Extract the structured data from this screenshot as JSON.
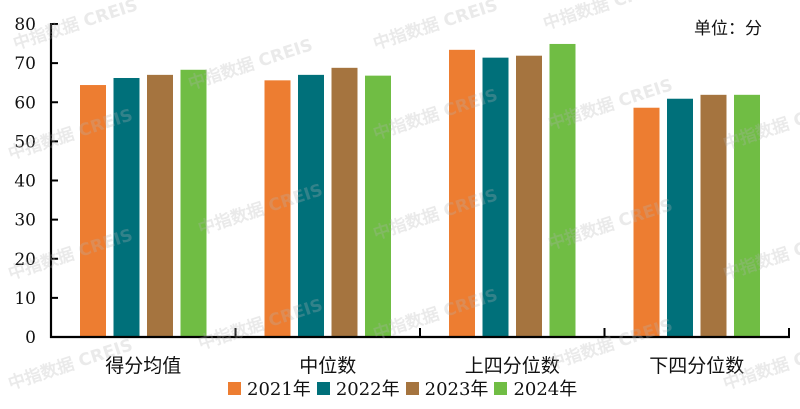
{
  "unit_label": "单位：分",
  "watermark_text": "中指数据 CREIS",
  "colors": {
    "2021": "#ED7D31",
    "2022": "#00707A",
    "2023": "#A5743F",
    "2024": "#70BD44",
    "axis": "#000000"
  },
  "legend": [
    {
      "label": "2021年",
      "color": "#ED7D31"
    },
    {
      "label": "2022年",
      "color": "#00707A"
    },
    {
      "label": "2023年",
      "color": "#A5743F"
    },
    {
      "label": "2024年",
      "color": "#70BD44"
    }
  ],
  "chart_data": {
    "type": "bar",
    "title": "",
    "xlabel": "",
    "ylabel": "",
    "unit": "单位：分",
    "categories": [
      "得分均值",
      "中位数",
      "上四分位数",
      "下四分位数"
    ],
    "series": [
      {
        "name": "2021年",
        "color": "#ED7D31",
        "values": [
          64.4,
          65.6,
          73.4,
          58.6
        ]
      },
      {
        "name": "2022年",
        "color": "#00707A",
        "values": [
          66.2,
          67.0,
          71.4,
          60.9
        ]
      },
      {
        "name": "2023年",
        "color": "#A5743F",
        "values": [
          67.0,
          68.8,
          71.9,
          61.9
        ]
      },
      {
        "name": "2024年",
        "color": "#70BD44",
        "values": [
          68.3,
          66.8,
          74.9,
          61.9
        ]
      }
    ],
    "ylim": [
      0,
      80
    ],
    "yticks": [
      0,
      10,
      20,
      30,
      40,
      50,
      60,
      70,
      80
    ],
    "grid": false,
    "legend_position": "bottom"
  }
}
